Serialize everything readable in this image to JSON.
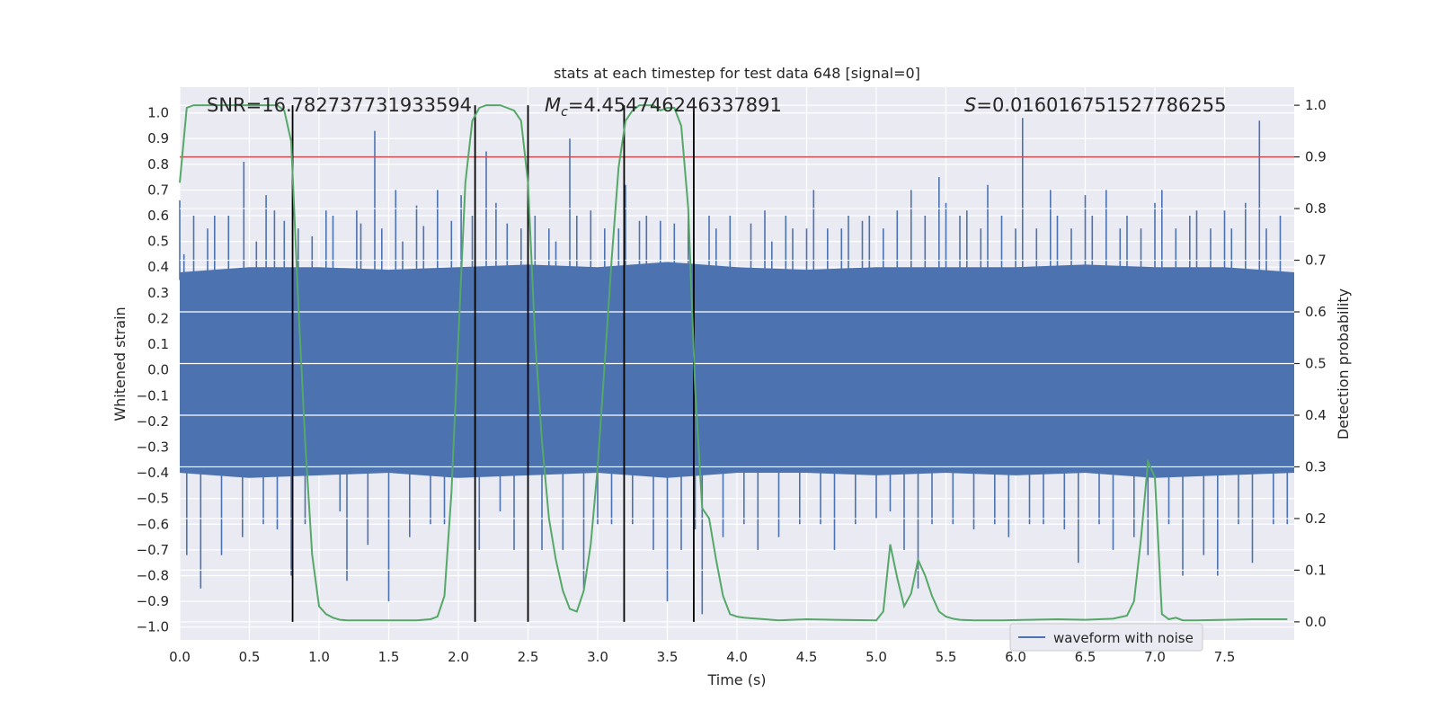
{
  "chart_data": {
    "type": "line",
    "title": "stats at each timestep for test data 648 [signal=0]",
    "xlabel": "Time (s)",
    "ylabel_left": "Whitened strain",
    "ylabel_right": "Detection probability",
    "xlim": [
      0.0,
      8.0
    ],
    "ylim_left": [
      -1.05,
      1.1
    ],
    "ylim_right": [
      -0.035,
      1.035
    ],
    "x_ticks": [
      "0.0",
      "0.5",
      "1.0",
      "1.5",
      "2.0",
      "2.5",
      "3.0",
      "3.5",
      "4.0",
      "4.5",
      "5.0",
      "5.5",
      "6.0",
      "6.5",
      "7.0",
      "7.5"
    ],
    "y_ticks_left": [
      "1.0",
      "0.9",
      "0.8",
      "0.7",
      "0.6",
      "0.5",
      "0.4",
      "0.3",
      "0.2",
      "0.1",
      "0.0",
      "−0.1",
      "−0.2",
      "−0.3",
      "−0.4",
      "−0.5",
      "−0.6",
      "−0.7",
      "−0.8",
      "−0.9",
      "−1.0"
    ],
    "y_ticks_right": [
      "1.0",
      "0.9",
      "0.8",
      "0.7",
      "0.6",
      "0.5",
      "0.4",
      "0.3",
      "0.2",
      "0.1",
      "0.0"
    ],
    "annotations": {
      "snr_label": "SNR=16.782737731933594",
      "mc_symbol": "M",
      "mc_subscript": "c",
      "mc_value": "=4.454746246337891",
      "s_symbol": "S",
      "s_value": "=0.016016751527786255"
    },
    "legend": {
      "label": "waveform with noise",
      "placement": "lower-right"
    },
    "threshold": {
      "value": 0.9,
      "axis": "right",
      "color": "#c44e52"
    },
    "event_lines_x": [
      0.81,
      2.12,
      2.5,
      3.19,
      3.69
    ],
    "series": [
      {
        "name": "waveform with noise",
        "axis": "left",
        "color": "#4c72b0",
        "band_envelope": {
          "x": [
            0.0,
            0.5,
            1.0,
            1.5,
            2.0,
            2.5,
            3.0,
            3.5,
            4.0,
            4.5,
            5.0,
            5.5,
            6.0,
            6.5,
            7.0,
            7.5,
            8.0
          ],
          "upper": [
            0.38,
            0.4,
            0.4,
            0.39,
            0.4,
            0.41,
            0.4,
            0.42,
            0.4,
            0.39,
            0.4,
            0.4,
            0.4,
            0.41,
            0.4,
            0.4,
            0.38
          ],
          "lower": [
            -0.4,
            -0.42,
            -0.41,
            -0.4,
            -0.42,
            -0.41,
            -0.4,
            -0.42,
            -0.4,
            -0.4,
            -0.41,
            -0.4,
            -0.41,
            -0.4,
            -0.42,
            -0.41,
            -0.4
          ]
        },
        "spikes": [
          [
            0.0,
            0.66
          ],
          [
            0.03,
            0.45
          ],
          [
            0.05,
            -0.72
          ],
          [
            0.1,
            0.6
          ],
          [
            0.15,
            -0.85
          ],
          [
            0.2,
            0.55
          ],
          [
            0.25,
            0.6
          ],
          [
            0.3,
            -0.72
          ],
          [
            0.35,
            0.6
          ],
          [
            0.45,
            -0.65
          ],
          [
            0.46,
            0.81
          ],
          [
            0.55,
            0.5
          ],
          [
            0.6,
            -0.6
          ],
          [
            0.62,
            0.68
          ],
          [
            0.68,
            0.62
          ],
          [
            0.7,
            -0.62
          ],
          [
            0.75,
            0.58
          ],
          [
            0.8,
            -0.8
          ],
          [
            0.85,
            0.55
          ],
          [
            0.9,
            -0.6
          ],
          [
            0.95,
            0.52
          ],
          [
            1.05,
            0.62
          ],
          [
            1.1,
            0.6
          ],
          [
            1.15,
            -0.55
          ],
          [
            1.2,
            -0.82
          ],
          [
            1.27,
            0.62
          ],
          [
            1.3,
            0.57
          ],
          [
            1.35,
            -0.68
          ],
          [
            1.4,
            0.93
          ],
          [
            1.45,
            0.55
          ],
          [
            1.5,
            -0.9
          ],
          [
            1.55,
            0.7
          ],
          [
            1.6,
            0.5
          ],
          [
            1.65,
            -0.65
          ],
          [
            1.7,
            0.64
          ],
          [
            1.75,
            0.56
          ],
          [
            1.8,
            -0.6
          ],
          [
            1.85,
            0.7
          ],
          [
            1.9,
            -0.6
          ],
          [
            1.95,
            0.58
          ],
          [
            2.02,
            0.68
          ],
          [
            2.1,
            0.6
          ],
          [
            2.15,
            -0.7
          ],
          [
            2.2,
            0.85
          ],
          [
            2.27,
            0.65
          ],
          [
            2.3,
            -0.55
          ],
          [
            2.35,
            0.57
          ],
          [
            2.4,
            -0.7
          ],
          [
            2.45,
            0.55
          ],
          [
            2.55,
            0.6
          ],
          [
            2.6,
            -0.7
          ],
          [
            2.65,
            0.55
          ],
          [
            2.7,
            0.5
          ],
          [
            2.75,
            -0.7
          ],
          [
            2.8,
            0.9
          ],
          [
            2.85,
            0.6
          ],
          [
            2.9,
            -0.85
          ],
          [
            2.95,
            0.62
          ],
          [
            3.0,
            -0.6
          ],
          [
            3.05,
            0.55
          ],
          [
            3.1,
            -0.6
          ],
          [
            3.15,
            0.55
          ],
          [
            3.2,
            0.72
          ],
          [
            3.25,
            -0.6
          ],
          [
            3.3,
            0.58
          ],
          [
            3.35,
            0.6
          ],
          [
            3.4,
            -0.7
          ],
          [
            3.45,
            0.58
          ],
          [
            3.5,
            -0.9
          ],
          [
            3.55,
            0.57
          ],
          [
            3.6,
            -0.7
          ],
          [
            3.65,
            0.6
          ],
          [
            3.7,
            -0.62
          ],
          [
            3.75,
            -0.95
          ],
          [
            3.8,
            0.6
          ],
          [
            3.85,
            0.55
          ],
          [
            3.9,
            -0.65
          ],
          [
            3.95,
            0.6
          ],
          [
            4.05,
            -0.6
          ],
          [
            4.1,
            0.57
          ],
          [
            4.15,
            -0.7
          ],
          [
            4.2,
            0.62
          ],
          [
            4.25,
            0.5
          ],
          [
            4.3,
            -0.65
          ],
          [
            4.35,
            0.6
          ],
          [
            4.4,
            0.55
          ],
          [
            4.45,
            -0.6
          ],
          [
            4.5,
            0.55
          ],
          [
            4.55,
            0.7
          ],
          [
            4.6,
            -0.6
          ],
          [
            4.65,
            0.55
          ],
          [
            4.7,
            -0.7
          ],
          [
            4.75,
            0.55
          ],
          [
            4.8,
            0.6
          ],
          [
            4.85,
            -0.6
          ],
          [
            4.9,
            0.58
          ],
          [
            4.95,
            0.6
          ],
          [
            5.0,
            -0.58
          ],
          [
            5.05,
            0.55
          ],
          [
            5.1,
            -0.55
          ],
          [
            5.15,
            0.62
          ],
          [
            5.2,
            -0.7
          ],
          [
            5.25,
            0.7
          ],
          [
            5.3,
            -0.85
          ],
          [
            5.35,
            0.6
          ],
          [
            5.4,
            -0.6
          ],
          [
            5.45,
            0.75
          ],
          [
            5.5,
            0.65
          ],
          [
            5.55,
            -0.6
          ],
          [
            5.6,
            0.6
          ],
          [
            5.65,
            0.62
          ],
          [
            5.7,
            -0.62
          ],
          [
            5.75,
            0.55
          ],
          [
            5.8,
            0.72
          ],
          [
            5.85,
            -0.6
          ],
          [
            5.9,
            0.6
          ],
          [
            5.95,
            -0.65
          ],
          [
            6.0,
            0.55
          ],
          [
            6.05,
            0.98
          ],
          [
            6.1,
            -0.6
          ],
          [
            6.15,
            0.55
          ],
          [
            6.2,
            -0.6
          ],
          [
            6.25,
            0.7
          ],
          [
            6.3,
            0.6
          ],
          [
            6.35,
            -0.62
          ],
          [
            6.4,
            0.55
          ],
          [
            6.45,
            -0.75
          ],
          [
            6.5,
            0.68
          ],
          [
            6.55,
            0.6
          ],
          [
            6.6,
            -0.6
          ],
          [
            6.65,
            0.7
          ],
          [
            6.7,
            -0.7
          ],
          [
            6.75,
            0.55
          ],
          [
            6.8,
            0.6
          ],
          [
            6.85,
            -0.65
          ],
          [
            6.9,
            0.55
          ],
          [
            6.95,
            -0.72
          ],
          [
            7.0,
            0.65
          ],
          [
            7.05,
            0.7
          ],
          [
            7.1,
            -0.6
          ],
          [
            7.15,
            0.55
          ],
          [
            7.2,
            -0.8
          ],
          [
            7.25,
            0.6
          ],
          [
            7.3,
            0.62
          ],
          [
            7.35,
            -0.72
          ],
          [
            7.4,
            0.55
          ],
          [
            7.45,
            -0.8
          ],
          [
            7.5,
            0.62
          ],
          [
            7.55,
            0.55
          ],
          [
            7.6,
            -0.6
          ],
          [
            7.65,
            0.65
          ],
          [
            7.7,
            -0.75
          ],
          [
            7.75,
            0.97
          ],
          [
            7.8,
            0.55
          ],
          [
            7.85,
            -0.6
          ],
          [
            7.9,
            0.6
          ],
          [
            7.95,
            -0.6
          ]
        ]
      },
      {
        "name": "detection probability",
        "axis": "right",
        "color": "#55a868",
        "x": [
          0.0,
          0.05,
          0.1,
          0.2,
          0.3,
          0.4,
          0.5,
          0.6,
          0.7,
          0.75,
          0.8,
          0.85,
          0.9,
          0.95,
          1.0,
          1.05,
          1.1,
          1.15,
          1.2,
          1.3,
          1.4,
          1.5,
          1.6,
          1.7,
          1.8,
          1.85,
          1.9,
          1.95,
          2.0,
          2.05,
          2.1,
          2.15,
          2.2,
          2.25,
          2.3,
          2.35,
          2.4,
          2.45,
          2.5,
          2.55,
          2.6,
          2.65,
          2.7,
          2.75,
          2.8,
          2.85,
          2.9,
          2.95,
          3.0,
          3.05,
          3.1,
          3.15,
          3.2,
          3.25,
          3.3,
          3.35,
          3.4,
          3.45,
          3.5,
          3.55,
          3.6,
          3.65,
          3.7,
          3.75,
          3.8,
          3.85,
          3.9,
          3.95,
          4.0,
          4.05,
          4.1,
          4.2,
          4.3,
          4.5,
          4.7,
          5.0,
          5.05,
          5.1,
          5.15,
          5.2,
          5.25,
          5.3,
          5.35,
          5.4,
          5.45,
          5.5,
          5.55,
          5.6,
          5.7,
          5.9,
          6.1,
          6.3,
          6.5,
          6.7,
          6.8,
          6.85,
          6.9,
          6.95,
          7.0,
          7.05,
          7.1,
          7.15,
          7.2,
          7.3,
          7.5,
          7.7,
          7.9,
          7.95
        ],
        "values": [
          0.85,
          0.995,
          1.0,
          1.0,
          1.0,
          1.0,
          1.0,
          1.0,
          1.0,
          0.99,
          0.93,
          0.62,
          0.35,
          0.13,
          0.03,
          0.015,
          0.008,
          0.004,
          0.003,
          0.003,
          0.003,
          0.003,
          0.003,
          0.003,
          0.005,
          0.01,
          0.05,
          0.25,
          0.55,
          0.85,
          0.97,
          0.995,
          1.0,
          1.0,
          1.0,
          0.995,
          0.99,
          0.97,
          0.85,
          0.55,
          0.35,
          0.2,
          0.12,
          0.06,
          0.025,
          0.02,
          0.06,
          0.15,
          0.3,
          0.5,
          0.7,
          0.88,
          0.97,
          0.99,
          1.0,
          1.0,
          1.0,
          0.99,
          0.995,
          0.995,
          0.96,
          0.8,
          0.45,
          0.22,
          0.2,
          0.12,
          0.05,
          0.015,
          0.01,
          0.008,
          0.007,
          0.005,
          0.003,
          0.005,
          0.004,
          0.003,
          0.02,
          0.15,
          0.085,
          0.03,
          0.055,
          0.12,
          0.09,
          0.05,
          0.02,
          0.01,
          0.006,
          0.004,
          0.003,
          0.003,
          0.004,
          0.005,
          0.004,
          0.006,
          0.012,
          0.04,
          0.16,
          0.31,
          0.28,
          0.015,
          0.005,
          0.008,
          0.003,
          0.003,
          0.004,
          0.005,
          0.005,
          0.005
        ]
      }
    ]
  }
}
